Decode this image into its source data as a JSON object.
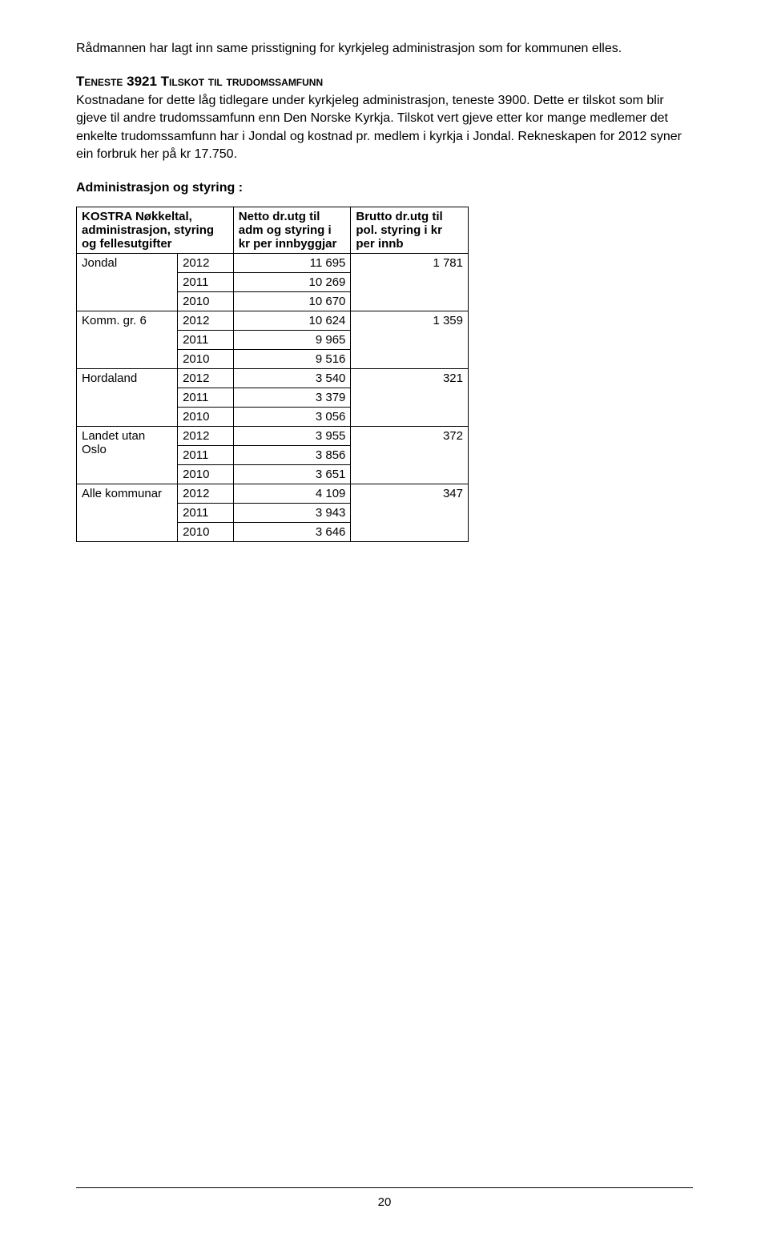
{
  "intro_paragraph": "Rådmannen har lagt inn same prisstigning for kyrkjeleg administrasjon som for kommunen elles.",
  "service_heading": "Teneste 3921 Tilskot til trudomssamfunn",
  "service_paragraph_1": "Kostnadane for dette låg tidlegare under kyrkjeleg administrasjon, teneste 3900. Dette er tilskot som blir gjeve til andre trudomssamfunn enn Den Norske Kyrkja. Tilskot vert gjeve etter kor mange medlemer det enkelte trudomssamfunn har i Jondal og kostnad pr. medlem i kyrkja i Jondal. Rekneskapen for 2012 syner ein forbruk her på kr 17.750.",
  "section_title": "Administrasjon og styring :",
  "table": {
    "header_col1": "KOSTRA Nøkkeltal, administrasjon, styring og fellesutgifter",
    "header_col2": "Netto dr.utg til adm og styring i kr per innbyggjar",
    "header_col3": "Brutto dr.utg til pol. styring i kr per innb",
    "groups": [
      {
        "category": "Jondal",
        "rows": [
          {
            "year": "2012",
            "netto": "11 695",
            "brutto": "1 781"
          },
          {
            "year": "2011",
            "netto": "10 269",
            "brutto": ""
          },
          {
            "year": "2010",
            "netto": "10 670",
            "brutto": ""
          }
        ]
      },
      {
        "category": "Komm. gr. 6",
        "rows": [
          {
            "year": "2012",
            "netto": "10 624",
            "brutto": "1 359"
          },
          {
            "year": "2011",
            "netto": "9 965",
            "brutto": ""
          },
          {
            "year": "2010",
            "netto": "9 516",
            "brutto": ""
          }
        ]
      },
      {
        "category": "Hordaland",
        "rows": [
          {
            "year": "2012",
            "netto": "3 540",
            "brutto": "321"
          },
          {
            "year": "2011",
            "netto": "3 379",
            "brutto": ""
          },
          {
            "year": "2010",
            "netto": "3 056",
            "brutto": ""
          }
        ]
      },
      {
        "category": "Landet utan Oslo",
        "rows": [
          {
            "year": "2012",
            "netto": "3 955",
            "brutto": "372"
          },
          {
            "year": "2011",
            "netto": "3 856",
            "brutto": ""
          },
          {
            "year": "2010",
            "netto": "3 651",
            "brutto": ""
          }
        ]
      },
      {
        "category": "Alle kommunar",
        "rows": [
          {
            "year": "2012",
            "netto": "4 109",
            "brutto": "347"
          },
          {
            "year": "2011",
            "netto": "3 943",
            "brutto": ""
          },
          {
            "year": "2010",
            "netto": "3 646",
            "brutto": ""
          }
        ]
      }
    ]
  },
  "page_number": "20"
}
